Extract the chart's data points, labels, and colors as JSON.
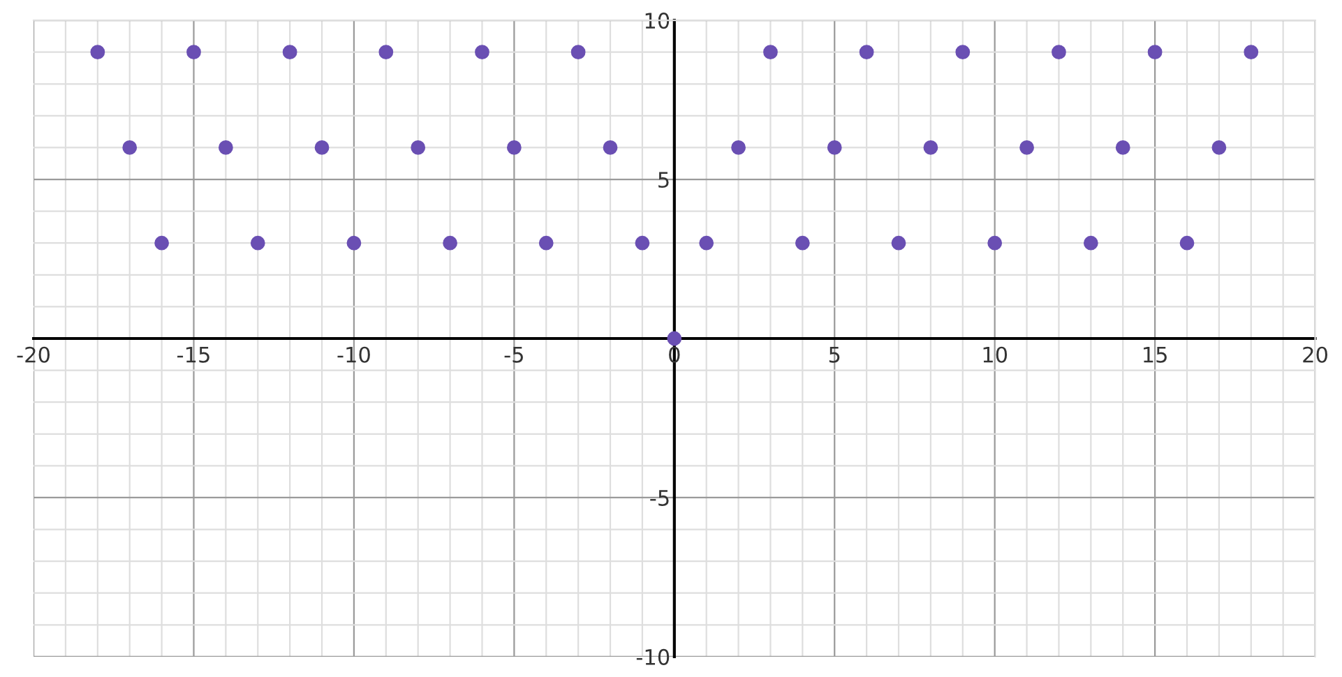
{
  "chart_data": {
    "type": "scatter",
    "marker": "circle",
    "grid": true,
    "xlim": [
      -20,
      20
    ],
    "ylim": [
      -10,
      10
    ],
    "xticks": [
      -20,
      {
        "value": -19,
        "label": null
      },
      {
        "value": -18,
        "label": null
      },
      {
        "value": -17,
        "label": null
      },
      {
        "value": -16,
        "label": null
      },
      -15,
      {
        "value": -14,
        "label": null
      },
      {
        "value": -13,
        "label": null
      },
      {
        "value": -12,
        "label": null
      },
      {
        "value": -11,
        "label": null
      },
      -10,
      {
        "value": -9,
        "label": null
      },
      {
        "value": -8,
        "label": null
      },
      {
        "value": -7,
        "label": null
      },
      {
        "value": -6,
        "label": null
      },
      -5,
      {
        "value": -4,
        "label": null
      },
      {
        "value": -3,
        "label": null
      },
      {
        "value": -2,
        "label": null
      },
      {
        "value": -1,
        "label": null
      },
      0,
      {
        "value": 1,
        "label": null
      },
      {
        "value": 2,
        "label": null
      },
      {
        "value": 3,
        "label": null
      },
      {
        "value": 4,
        "label": null
      },
      5,
      {
        "value": 6,
        "label": null
      },
      {
        "value": 7,
        "label": null
      },
      {
        "value": 8,
        "label": null
      },
      {
        "value": 9,
        "label": null
      },
      10,
      {
        "value": 11,
        "label": null
      },
      {
        "value": 12,
        "label": null
      },
      {
        "value": 13,
        "label": null
      },
      {
        "value": 14,
        "label": null
      },
      15,
      {
        "value": 16,
        "label": null
      },
      {
        "value": 17,
        "label": null
      },
      {
        "value": 18,
        "label": null
      },
      {
        "value": 19,
        "label": null
      },
      20
    ],
    "yticks": [
      -10,
      {
        "value": -9,
        "label": null
      },
      {
        "value": -8,
        "label": null
      },
      {
        "value": -7,
        "label": null
      },
      {
        "value": -6,
        "label": null
      },
      -5,
      {
        "value": -4,
        "label": null
      },
      {
        "value": -3,
        "label": null
      },
      {
        "value": -2,
        "label": null
      },
      {
        "value": -1,
        "label": null
      },
      {
        "value": 0,
        "label": null
      },
      {
        "value": 1,
        "label": null
      },
      {
        "value": 2,
        "label": null
      },
      {
        "value": 3,
        "label": null
      },
      {
        "value": 4,
        "label": null
      },
      5,
      {
        "value": 6,
        "label": null
      },
      {
        "value": 7,
        "label": null
      },
      {
        "value": 8,
        "label": null
      },
      {
        "value": 9,
        "label": null
      },
      10
    ],
    "series": [
      {
        "color": "#6a4fb3",
        "x": [
          -18,
          -17,
          -16,
          -15,
          -14,
          -13,
          -12,
          -11,
          -10,
          -9,
          -8,
          -7,
          -6,
          -5,
          -4,
          -3,
          -2,
          -1,
          0,
          1,
          2,
          3,
          4,
          5,
          6,
          7,
          8,
          9,
          10,
          11,
          12,
          13,
          14,
          15,
          16,
          17,
          18
        ],
        "values": [
          9,
          6,
          3,
          9,
          6,
          3,
          9,
          6,
          3,
          9,
          6,
          3,
          9,
          6,
          3,
          9,
          6,
          3,
          0,
          3,
          6,
          9,
          3,
          6,
          9,
          3,
          6,
          9,
          3,
          6,
          9,
          3,
          6,
          9,
          3,
          6,
          9
        ]
      }
    ]
  }
}
